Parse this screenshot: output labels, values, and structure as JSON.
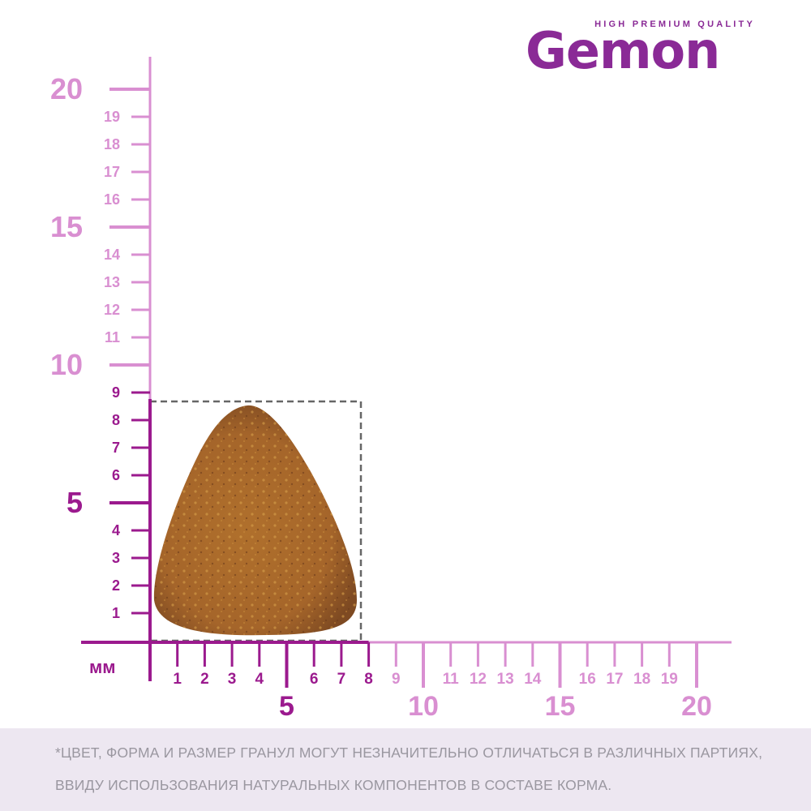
{
  "logo": {
    "tagline": "HIGH PREMIUM QUALITY",
    "name": "Gemon"
  },
  "colors": {
    "dark": "#9b1a8e",
    "light": "#d98fd1",
    "dashed": "#666666",
    "footer_bg": "#ede7f1"
  },
  "ruler": {
    "unit_label": "мм",
    "y_axis": {
      "major_labels": [
        "5",
        "10",
        "15",
        "20"
      ],
      "minor_labels": [
        "1",
        "2",
        "3",
        "4",
        "6",
        "7",
        "8",
        "9",
        "11",
        "12",
        "13",
        "14",
        "16",
        "17",
        "18",
        "19"
      ],
      "highlight_to": 9
    },
    "x_axis": {
      "major_labels": [
        "5",
        "10",
        "15",
        "20"
      ],
      "minor_labels": [
        "1",
        "2",
        "3",
        "4",
        "6",
        "7",
        "8",
        "9",
        "11",
        "12",
        "13",
        "14",
        "16",
        "17",
        "18",
        "19"
      ],
      "highlight_to": 8
    }
  },
  "kibble": {
    "width_mm": 8,
    "height_mm": 9
  },
  "footer": {
    "line1": "*ЦВЕТ, ФОРМА И РАЗМЕР ГРАНУЛ МОГУТ НЕЗНАЧИТЕЛЬНО ОТЛИЧАТЬСЯ В РАЗЛИЧНЫХ ПАРТИЯХ,",
    "line2": "ВВИДУ ИСПОЛЬЗОВАНИЯ НАТУРАЛЬНЫХ КОМПОНЕНТОВ В СОСТАВЕ КОРМА."
  }
}
